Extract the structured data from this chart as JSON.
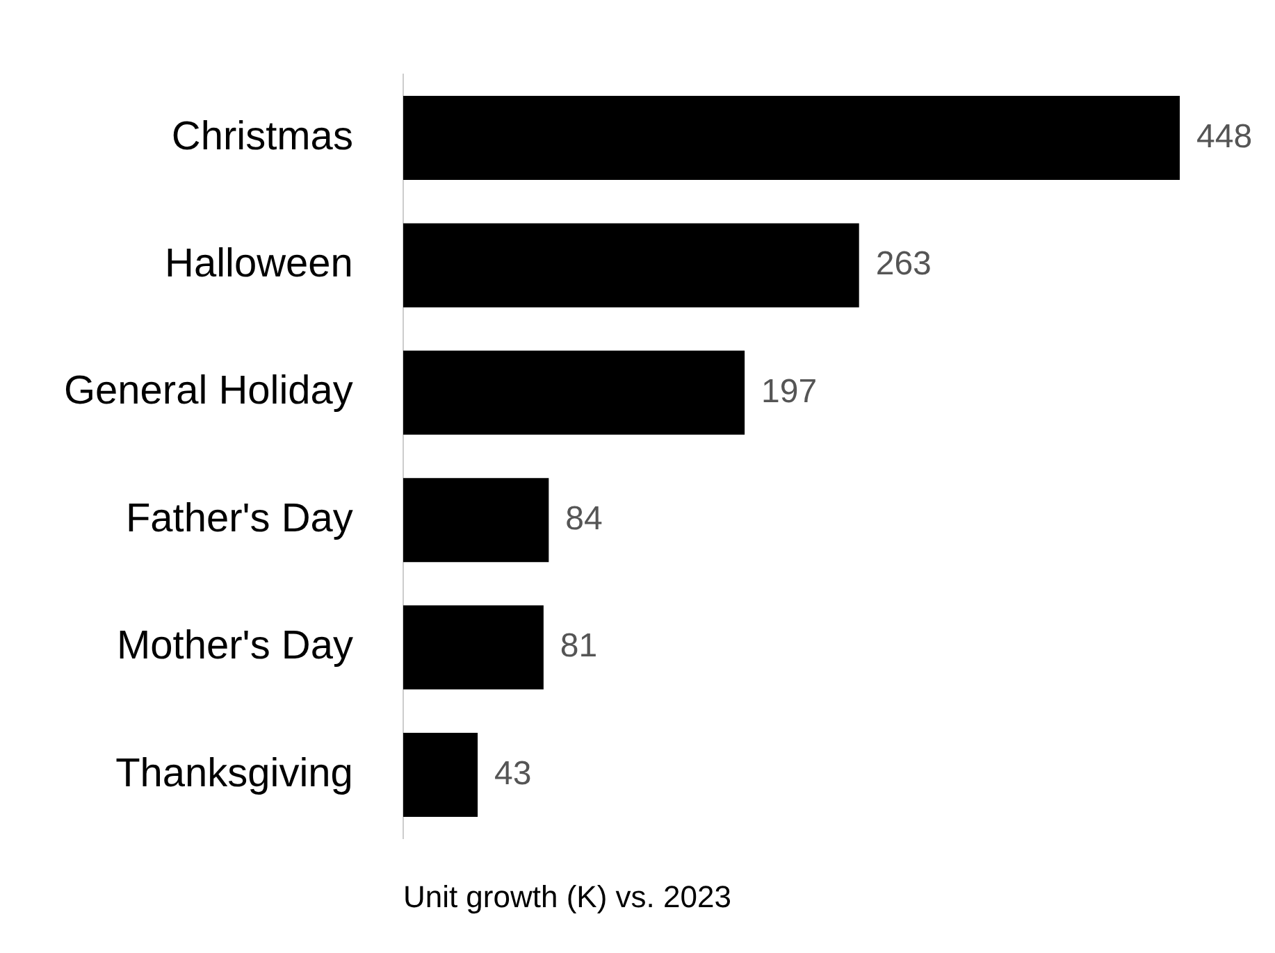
{
  "chart_data": {
    "type": "bar",
    "orientation": "horizontal",
    "xlabel": "Unit growth (K) vs. 2023",
    "categories": [
      "Christmas",
      "Halloween",
      "General Holiday",
      "Father's Day",
      "Mother's Day",
      "Thanksgiving"
    ],
    "values": [
      448,
      263,
      197,
      84,
      81,
      43
    ],
    "color": "#000000",
    "data_labels": true,
    "grid": false,
    "legend": false,
    "tick_labels": "y"
  }
}
